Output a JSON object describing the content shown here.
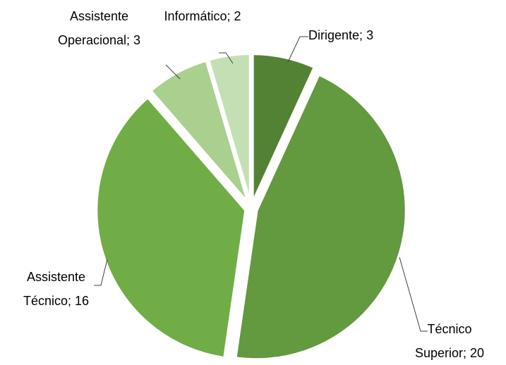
{
  "chart_data": {
    "type": "pie",
    "categories": [
      "Dirigente",
      "Técnico Superior",
      "Assistente Técnico",
      "Assistente Operacional",
      "Informático"
    ],
    "values": [
      3,
      20,
      16,
      3,
      2
    ],
    "label_separator": "; ",
    "colors": [
      "#548235",
      "#63993f",
      "#70ad47",
      "#a9d08e",
      "#c5dfb5"
    ]
  }
}
